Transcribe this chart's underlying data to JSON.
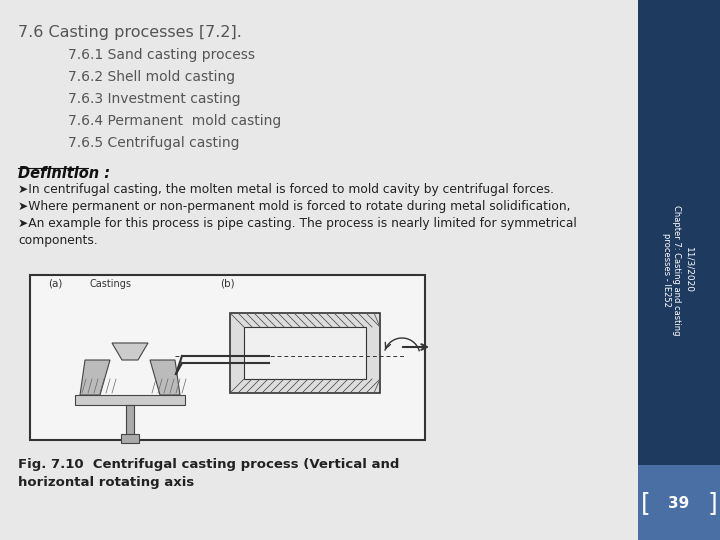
{
  "title_text": "7.6 Casting processes [7.2].",
  "subtitle_lines": [
    "7.6.1 Sand casting process",
    "7.6.2 Shell mold casting",
    "7.6.3 Investment casting",
    "7.6.4 Permanent  mold casting",
    "7.6.5 Centrifugal casting"
  ],
  "definition_label": "Definition :",
  "body_lines": [
    "➤In centrifugal casting, the molten metal is forced to mold cavity by centrifugal forces.",
    "➤Where permanent or non-permanent mold is forced to rotate during metal solidification,",
    "➤An example for this process is pipe casting. The process is nearly limited for symmetrical",
    "components."
  ],
  "fig_caption_line1": "Fig. 7.10  Centrifugal casting process (Vertical and",
  "fig_caption_line2": "horizontal rotating axis",
  "sidebar_line1": "Chapter 7: Casting and casting",
  "sidebar_line2": "processes - IE252",
  "sidebar_date": "11/3/2020",
  "page_number": "39",
  "bg_color": "#e8e8e8",
  "sidebar_color": "#1e3a5f",
  "sidebar_bottom_color": "#4a6fa5",
  "text_color": "#555555",
  "title_color": "#555555",
  "white": "#ffffff"
}
